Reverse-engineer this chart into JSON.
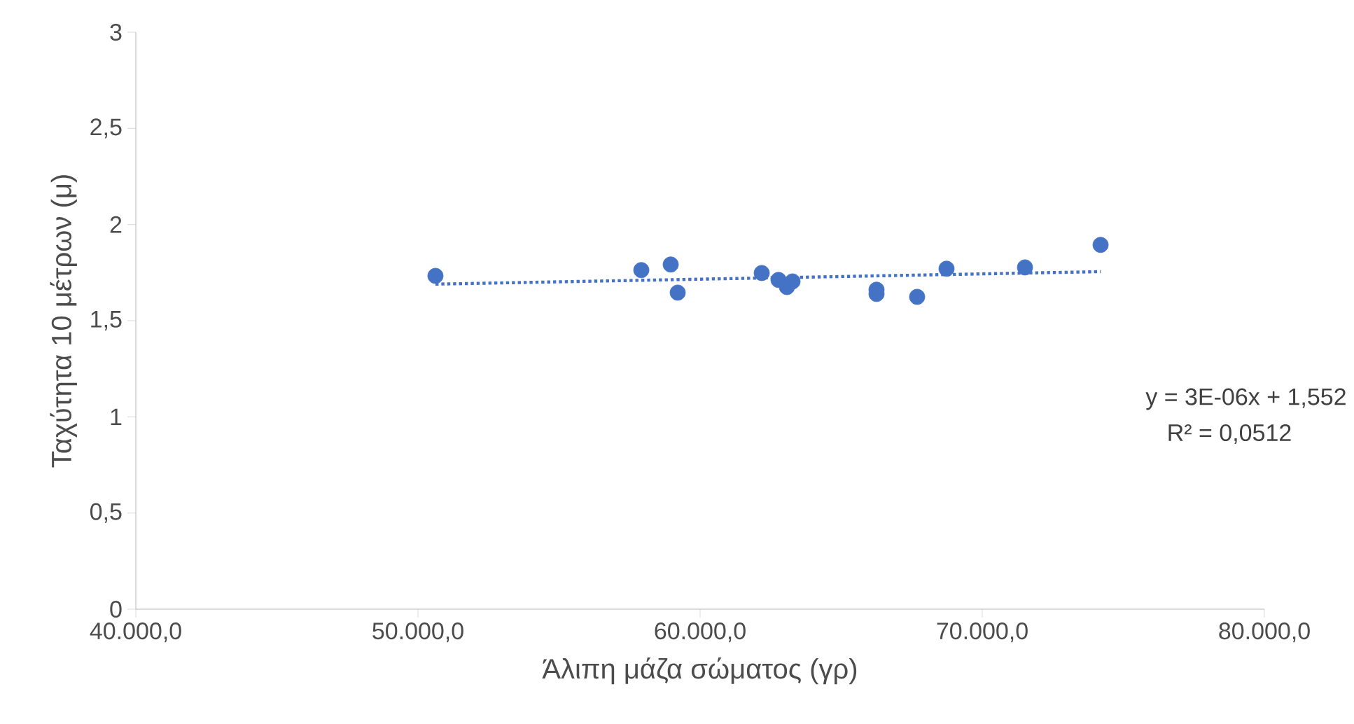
{
  "chart_data": {
    "type": "scatter",
    "xlabel": "Άλιπη μάζα σώματος (γρ)",
    "ylabel": "Ταχύτητα 10 μέτρων (μ)",
    "xlim": [
      40000,
      80000
    ],
    "ylim": [
      0,
      3
    ],
    "xticks": [
      {
        "value": 40000,
        "label": "40.000,0"
      },
      {
        "value": 50000,
        "label": "50.000,0"
      },
      {
        "value": 60000,
        "label": "60.000,0"
      },
      {
        "value": 70000,
        "label": "70.000,0"
      },
      {
        "value": 80000,
        "label": "80.000,0"
      }
    ],
    "yticks": [
      0,
      {
        "value": 0.5,
        "label": "0,5"
      },
      1,
      {
        "value": 1.5,
        "label": "1,5"
      },
      2,
      {
        "value": 2.5,
        "label": "2,5"
      },
      3
    ],
    "grid": false,
    "series": [
      {
        "color": "#4472c4",
        "marker": "circle",
        "x": [
          50620,
          57916,
          58958,
          59206,
          62184,
          62779,
          63077,
          63275,
          66253,
          66253,
          67692,
          68734,
          71514,
          74194
        ],
        "values": [
          1.733,
          1.763,
          1.792,
          1.646,
          1.748,
          1.712,
          1.675,
          1.704,
          1.661,
          1.639,
          1.624,
          1.77,
          1.777,
          1.894
        ]
      },
      {
        "type": "line",
        "color": "#4472c4",
        "line_style": "dotted",
        "marker": "none",
        "x": [
          50620,
          74194
        ],
        "values": [
          1.69,
          1.755
        ]
      }
    ],
    "annotations": [
      "y = 3E-06x + 1,552",
      "R² = 0,0512"
    ]
  }
}
